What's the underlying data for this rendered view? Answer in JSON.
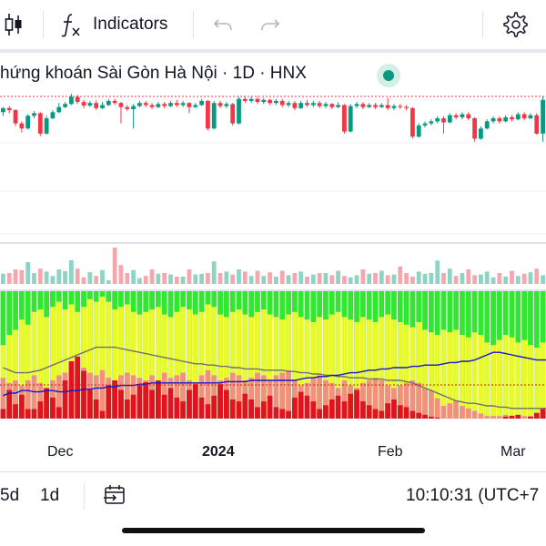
{
  "toolbar": {
    "indicators_label": "Indicators",
    "icons": [
      "candles-icon",
      "function-fx-icon",
      "undo-icon",
      "redo-icon",
      "settings-gear-icon"
    ]
  },
  "chart_header": {
    "title": "hứng khoán Sài Gòn Hà Nội · 1D · HNX",
    "status_color": "#089981"
  },
  "colors": {
    "up": "#089981",
    "down": "#f23645",
    "volume_up": "#8fd3c5",
    "volume_down": "#f5a7ae",
    "indicator_green": "#32e632",
    "indicator_yellow": "#eaf92a",
    "indicator_red": "#e0141e",
    "indicator_salmon": "#f1907c",
    "line_blue": "#1717c8",
    "line_gray": "#707070"
  },
  "time_axis": {
    "labels": [
      {
        "text": "Dec",
        "bold": false
      },
      {
        "text": "2024",
        "bold": true
      },
      {
        "text": "Feb",
        "bold": false
      },
      {
        "text": "Mar",
        "bold": false
      }
    ]
  },
  "bottom_bar": {
    "range_5d": "5d",
    "range_1d": "1d",
    "time": "10:10:31 (UTC+7"
  },
  "chart_data": [
    {
      "type": "candlestick",
      "title": "",
      "candles": [
        {
          "o": 0.62,
          "c": 0.7,
          "h": 0.72,
          "l": 0.55
        },
        {
          "o": 0.7,
          "c": 0.66,
          "h": 0.74,
          "l": 0.6
        },
        {
          "o": 0.66,
          "c": 0.4,
          "h": 0.68,
          "l": 0.35
        },
        {
          "o": 0.4,
          "c": 0.3,
          "h": 0.44,
          "l": 0.22
        },
        {
          "o": 0.3,
          "c": 0.55,
          "h": 0.58,
          "l": 0.28
        },
        {
          "o": 0.55,
          "c": 0.6,
          "h": 0.64,
          "l": 0.5
        },
        {
          "o": 0.6,
          "c": 0.2,
          "h": 0.62,
          "l": 0.15
        },
        {
          "o": 0.2,
          "c": 0.5,
          "h": 0.55,
          "l": 0.18
        },
        {
          "o": 0.5,
          "c": 0.62,
          "h": 0.66,
          "l": 0.48
        },
        {
          "o": 0.62,
          "c": 0.72,
          "h": 0.8,
          "l": 0.6
        },
        {
          "o": 0.72,
          "c": 0.78,
          "h": 0.82,
          "l": 0.7
        },
        {
          "o": 0.78,
          "c": 0.92,
          "h": 0.98,
          "l": 0.76
        },
        {
          "o": 0.92,
          "c": 0.82,
          "h": 0.96,
          "l": 0.78
        },
        {
          "o": 0.82,
          "c": 0.75,
          "h": 0.86,
          "l": 0.7
        },
        {
          "o": 0.75,
          "c": 0.8,
          "h": 0.84,
          "l": 0.72
        },
        {
          "o": 0.8,
          "c": 0.7,
          "h": 0.85,
          "l": 0.66
        },
        {
          "o": 0.7,
          "c": 0.76,
          "h": 0.82,
          "l": 0.68
        },
        {
          "o": 0.76,
          "c": 0.84,
          "h": 0.88,
          "l": 0.74
        },
        {
          "o": 0.84,
          "c": 0.8,
          "h": 0.88,
          "l": 0.76
        },
        {
          "o": 0.8,
          "c": 0.72,
          "h": 0.82,
          "l": 0.4
        },
        {
          "o": 0.72,
          "c": 0.68,
          "h": 0.76,
          "l": 0.64
        },
        {
          "o": 0.68,
          "c": 0.74,
          "h": 0.78,
          "l": 0.3
        },
        {
          "o": 0.74,
          "c": 0.8,
          "h": 0.84,
          "l": 0.72
        },
        {
          "o": 0.8,
          "c": 0.76,
          "h": 0.84,
          "l": 0.72
        },
        {
          "o": 0.76,
          "c": 0.72,
          "h": 0.8,
          "l": 0.68
        },
        {
          "o": 0.72,
          "c": 0.78,
          "h": 0.82,
          "l": 0.7
        },
        {
          "o": 0.78,
          "c": 0.74,
          "h": 0.82,
          "l": 0.7
        },
        {
          "o": 0.74,
          "c": 0.8,
          "h": 0.84,
          "l": 0.72
        },
        {
          "o": 0.8,
          "c": 0.76,
          "h": 0.86,
          "l": 0.72
        },
        {
          "o": 0.76,
          "c": 0.8,
          "h": 0.84,
          "l": 0.72
        },
        {
          "o": 0.8,
          "c": 0.72,
          "h": 0.82,
          "l": 0.6
        },
        {
          "o": 0.72,
          "c": 0.76,
          "h": 0.8,
          "l": 0.7
        },
        {
          "o": 0.76,
          "c": 0.84,
          "h": 0.88,
          "l": 0.74
        },
        {
          "o": 0.84,
          "c": 0.3,
          "h": 0.86,
          "l": 0.26
        },
        {
          "o": 0.3,
          "c": 0.8,
          "h": 0.84,
          "l": 0.28
        },
        {
          "o": 0.8,
          "c": 0.74,
          "h": 0.84,
          "l": 0.7
        },
        {
          "o": 0.74,
          "c": 0.78,
          "h": 0.82,
          "l": 0.7
        },
        {
          "o": 0.78,
          "c": 0.4,
          "h": 0.8,
          "l": 0.36
        },
        {
          "o": 0.4,
          "c": 0.88,
          "h": 0.92,
          "l": 0.38
        },
        {
          "o": 0.88,
          "c": 0.84,
          "h": 0.92,
          "l": 0.8
        },
        {
          "o": 0.84,
          "c": 0.88,
          "h": 0.92,
          "l": 0.8
        },
        {
          "o": 0.88,
          "c": 0.82,
          "h": 0.92,
          "l": 0.78
        },
        {
          "o": 0.82,
          "c": 0.86,
          "h": 0.9,
          "l": 0.78
        },
        {
          "o": 0.86,
          "c": 0.8,
          "h": 0.88,
          "l": 0.76
        },
        {
          "o": 0.8,
          "c": 0.84,
          "h": 0.88,
          "l": 0.76
        },
        {
          "o": 0.84,
          "c": 0.76,
          "h": 0.88,
          "l": 0.72
        },
        {
          "o": 0.76,
          "c": 0.8,
          "h": 0.84,
          "l": 0.72
        },
        {
          "o": 0.8,
          "c": 0.7,
          "h": 0.84,
          "l": 0.66
        },
        {
          "o": 0.7,
          "c": 0.8,
          "h": 0.84,
          "l": 0.68
        },
        {
          "o": 0.8,
          "c": 0.76,
          "h": 0.86,
          "l": 0.72
        },
        {
          "o": 0.76,
          "c": 0.8,
          "h": 0.84,
          "l": 0.72
        },
        {
          "o": 0.8,
          "c": 0.74,
          "h": 0.84,
          "l": 0.7
        },
        {
          "o": 0.74,
          "c": 0.78,
          "h": 0.82,
          "l": 0.7
        },
        {
          "o": 0.78,
          "c": 0.72,
          "h": 0.8,
          "l": 0.68
        },
        {
          "o": 0.72,
          "c": 0.76,
          "h": 0.82,
          "l": 0.7
        },
        {
          "o": 0.76,
          "c": 0.24,
          "h": 0.78,
          "l": 0.2
        },
        {
          "o": 0.24,
          "c": 0.74,
          "h": 0.78,
          "l": 0.22
        },
        {
          "o": 0.74,
          "c": 0.78,
          "h": 0.82,
          "l": 0.7
        },
        {
          "o": 0.78,
          "c": 0.72,
          "h": 0.82,
          "l": 0.68
        },
        {
          "o": 0.72,
          "c": 0.76,
          "h": 0.8,
          "l": 0.7
        },
        {
          "o": 0.76,
          "c": 0.72,
          "h": 0.8,
          "l": 0.68
        },
        {
          "o": 0.72,
          "c": 0.76,
          "h": 0.8,
          "l": 0.7
        },
        {
          "o": 0.76,
          "c": 0.7,
          "h": 0.9,
          "l": 0.66
        },
        {
          "o": 0.7,
          "c": 0.74,
          "h": 0.78,
          "l": 0.66
        },
        {
          "o": 0.74,
          "c": 0.72,
          "h": 0.78,
          "l": 0.68
        },
        {
          "o": 0.72,
          "c": 0.7,
          "h": 0.76,
          "l": 0.66
        },
        {
          "o": 0.7,
          "c": 0.14,
          "h": 0.72,
          "l": 0.1
        },
        {
          "o": 0.14,
          "c": 0.36,
          "h": 0.4,
          "l": 0.12
        },
        {
          "o": 0.36,
          "c": 0.4,
          "h": 0.44,
          "l": 0.32
        },
        {
          "o": 0.4,
          "c": 0.44,
          "h": 0.48,
          "l": 0.36
        },
        {
          "o": 0.44,
          "c": 0.5,
          "h": 0.54,
          "l": 0.4
        },
        {
          "o": 0.5,
          "c": 0.42,
          "h": 0.54,
          "l": 0.2
        },
        {
          "o": 0.42,
          "c": 0.56,
          "h": 0.6,
          "l": 0.4
        },
        {
          "o": 0.56,
          "c": 0.52,
          "h": 0.6,
          "l": 0.48
        },
        {
          "o": 0.52,
          "c": 0.58,
          "h": 0.62,
          "l": 0.48
        },
        {
          "o": 0.58,
          "c": 0.5,
          "h": 0.62,
          "l": 0.46
        },
        {
          "o": 0.5,
          "c": 0.1,
          "h": 0.52,
          "l": 0.04
        },
        {
          "o": 0.1,
          "c": 0.3,
          "h": 0.34,
          "l": 0.08
        },
        {
          "o": 0.3,
          "c": 0.44,
          "h": 0.48,
          "l": 0.28
        },
        {
          "o": 0.44,
          "c": 0.5,
          "h": 0.54,
          "l": 0.4
        },
        {
          "o": 0.5,
          "c": 0.44,
          "h": 0.54,
          "l": 0.4
        },
        {
          "o": 0.44,
          "c": 0.52,
          "h": 0.56,
          "l": 0.42
        },
        {
          "o": 0.52,
          "c": 0.48,
          "h": 0.56,
          "l": 0.44
        },
        {
          "o": 0.48,
          "c": 0.58,
          "h": 0.62,
          "l": 0.46
        },
        {
          "o": 0.58,
          "c": 0.5,
          "h": 0.62,
          "l": 0.46
        },
        {
          "o": 0.5,
          "c": 0.56,
          "h": 0.6,
          "l": 0.48
        },
        {
          "o": 0.56,
          "c": 0.2,
          "h": 0.6,
          "l": 0.18
        },
        {
          "o": 0.2,
          "c": 0.86,
          "h": 0.92,
          "l": 0.04
        }
      ],
      "volume": [
        0.28,
        0.3,
        0.4,
        0.38,
        0.6,
        0.3,
        0.42,
        0.34,
        0.22,
        0.4,
        0.35,
        0.65,
        0.42,
        0.18,
        0.32,
        0.22,
        0.38,
        0.1,
        1.0,
        0.52,
        0.3,
        0.38,
        0.16,
        0.22,
        0.4,
        0.28,
        0.3,
        0.26,
        0.2,
        0.2,
        0.4,
        0.26,
        0.28,
        0.3,
        0.62,
        0.3,
        0.34,
        0.26,
        0.4,
        0.34,
        0.22,
        0.36,
        0.22,
        0.32,
        0.2,
        0.36,
        0.24,
        0.3,
        0.34,
        0.2,
        0.26,
        0.3,
        0.3,
        0.24,
        0.36,
        0.22,
        0.18,
        0.24,
        0.4,
        0.28,
        0.3,
        0.36,
        0.24,
        0.26,
        0.48,
        0.3,
        0.2,
        0.34,
        0.28,
        0.3,
        0.64,
        0.3,
        0.42,
        0.22,
        0.3,
        0.4,
        0.24,
        0.26,
        0.34,
        0.18,
        0.3,
        0.2,
        0.36,
        0.22,
        0.28,
        0.32,
        0.42,
        0.24,
        0.4,
        0.28,
        0.22,
        0.48
      ],
      "indicator": {
        "green_lower": [
          0.62,
          0.7,
          0.74,
          0.82,
          0.78,
          0.88,
          0.9,
          0.84,
          0.92,
          0.96,
          0.9,
          0.94,
          0.88,
          0.92,
          0.98,
          0.96,
          1.0,
          0.96,
          0.9,
          0.92,
          0.94,
          0.88,
          0.86,
          0.88,
          0.9,
          0.92,
          0.86,
          0.84,
          0.88,
          0.92,
          0.9,
          0.86,
          0.88,
          0.94,
          0.92,
          0.86,
          0.84,
          0.88,
          0.9,
          0.86,
          0.84,
          0.88,
          0.9,
          0.86,
          0.84,
          0.82,
          0.86,
          0.88,
          0.84,
          0.82,
          0.8,
          0.84,
          0.82,
          0.86,
          0.88,
          0.84,
          0.82,
          0.8,
          0.84,
          0.82,
          0.8,
          0.84,
          0.86,
          0.82,
          0.8,
          0.78,
          0.76,
          0.8,
          0.74,
          0.72,
          0.7,
          0.74,
          0.72,
          0.74,
          0.7,
          0.68,
          0.72,
          0.7,
          0.64,
          0.62,
          0.66,
          0.7,
          0.68,
          0.64,
          0.66,
          0.62,
          0.6,
          0.64,
          0.66,
          0.62,
          0.6,
          0.58
        ],
        "red": [
          0.1,
          0.3,
          0.15,
          0.25,
          0.1,
          0.1,
          0.18,
          0.32,
          0.22,
          0.12,
          0.4,
          0.6,
          0.65,
          0.5,
          0.3,
          0.2,
          0.08,
          0.35,
          0.4,
          0.3,
          0.2,
          0.25,
          0.35,
          0.38,
          0.3,
          0.4,
          0.25,
          0.32,
          0.22,
          0.18,
          0.3,
          0.36,
          0.22,
          0.15,
          0.24,
          0.36,
          0.3,
          0.2,
          0.18,
          0.26,
          0.2,
          0.12,
          0.18,
          0.24,
          0.12,
          0.1,
          0.08,
          0.22,
          0.28,
          0.24,
          0.18,
          0.1,
          0.14,
          0.2,
          0.24,
          0.18,
          0.26,
          0.3,
          0.18,
          0.14,
          0.1,
          0.08,
          0.16,
          0.2,
          0.14,
          0.12,
          0.08,
          0.06,
          0.04,
          0.02,
          0.01,
          0.0,
          0.0,
          0.0,
          0.0,
          0.0,
          0.0,
          0.0,
          0.0,
          0.0,
          0.0,
          0.02,
          0.03,
          0.04,
          0.0,
          0.02,
          0.06,
          0.1,
          0.12,
          0.14,
          0.06,
          0.3
        ],
        "salmon": [
          0.32,
          0.28,
          0.3,
          0.26,
          0.3,
          0.34,
          0.28,
          0.24,
          0.3,
          0.34,
          0.36,
          0.32,
          0.34,
          0.4,
          0.36,
          0.34,
          0.38,
          0.32,
          0.3,
          0.34,
          0.36,
          0.34,
          0.32,
          0.3,
          0.34,
          0.3,
          0.36,
          0.32,
          0.34,
          0.36,
          0.3,
          0.28,
          0.34,
          0.38,
          0.34,
          0.3,
          0.32,
          0.36,
          0.34,
          0.3,
          0.32,
          0.36,
          0.34,
          0.3,
          0.34,
          0.36,
          0.38,
          0.3,
          0.26,
          0.28,
          0.32,
          0.34,
          0.3,
          0.28,
          0.24,
          0.3,
          0.26,
          0.24,
          0.28,
          0.3,
          0.32,
          0.3,
          0.26,
          0.24,
          0.26,
          0.28,
          0.3,
          0.28,
          0.24,
          0.22,
          0.16,
          0.1,
          0.12,
          0.14,
          0.1,
          0.08,
          0.06,
          0.04,
          0.02,
          0.02,
          0.02,
          0.03,
          0.02,
          0.02,
          0.02,
          0.02,
          0.02,
          0.02,
          0.04,
          0.06,
          0.04,
          0.12
        ],
        "blue_line": [
          0.18,
          0.2,
          0.2,
          0.22,
          0.22,
          0.21,
          0.21,
          0.22,
          0.22,
          0.21,
          0.21,
          0.22,
          0.22,
          0.23,
          0.23,
          0.24,
          0.24,
          0.25,
          0.25,
          0.26,
          0.26,
          0.26,
          0.27,
          0.27,
          0.28,
          0.28,
          0.28,
          0.28,
          0.28,
          0.28,
          0.28,
          0.28,
          0.28,
          0.28,
          0.28,
          0.28,
          0.29,
          0.29,
          0.29,
          0.29,
          0.3,
          0.3,
          0.3,
          0.3,
          0.3,
          0.3,
          0.3,
          0.3,
          0.31,
          0.32,
          0.32,
          0.33,
          0.33,
          0.34,
          0.34,
          0.35,
          0.36,
          0.36,
          0.37,
          0.38,
          0.38,
          0.39,
          0.39,
          0.4,
          0.4,
          0.4,
          0.41,
          0.41,
          0.42,
          0.42,
          0.42,
          0.43,
          0.44,
          0.44,
          0.45,
          0.45,
          0.46,
          0.48,
          0.5,
          0.52,
          0.52,
          0.51,
          0.5,
          0.49,
          0.48,
          0.47,
          0.46,
          0.46,
          0.46,
          0.46,
          0.46,
          0.46
        ],
        "gray_line": [
          0.4,
          0.38,
          0.36,
          0.36,
          0.36,
          0.37,
          0.38,
          0.4,
          0.42,
          0.44,
          0.46,
          0.48,
          0.5,
          0.52,
          0.54,
          0.56,
          0.56,
          0.56,
          0.56,
          0.55,
          0.54,
          0.53,
          0.52,
          0.51,
          0.5,
          0.49,
          0.48,
          0.47,
          0.46,
          0.45,
          0.44,
          0.43,
          0.43,
          0.42,
          0.42,
          0.41,
          0.41,
          0.4,
          0.4,
          0.39,
          0.39,
          0.39,
          0.38,
          0.38,
          0.38,
          0.38,
          0.37,
          0.37,
          0.36,
          0.36,
          0.35,
          0.35,
          0.34,
          0.34,
          0.33,
          0.33,
          0.32,
          0.32,
          0.32,
          0.31,
          0.31,
          0.31,
          0.3,
          0.3,
          0.3,
          0.29,
          0.28,
          0.26,
          0.24,
          0.22,
          0.2,
          0.18,
          0.16,
          0.14,
          0.13,
          0.12,
          0.12,
          0.11,
          0.1,
          0.1,
          0.09,
          0.09,
          0.08,
          0.08,
          0.08,
          0.08,
          0.08,
          0.08,
          0.08,
          0.08,
          0.08,
          0.08
        ]
      }
    }
  ]
}
